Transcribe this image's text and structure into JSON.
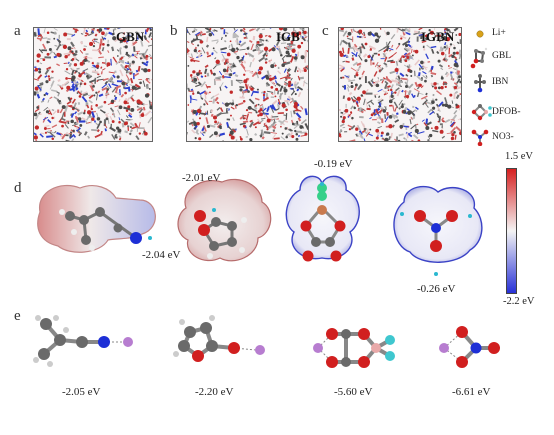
{
  "panels": {
    "a": {
      "label": "a",
      "title": "GBN"
    },
    "b": {
      "label": "b",
      "title": "IGB"
    },
    "c": {
      "label": "c",
      "title": "IGBN"
    },
    "d": {
      "label": "d"
    },
    "e": {
      "label": "e"
    }
  },
  "legend": [
    {
      "label": "Li+",
      "icon": "lithium-ion-icon"
    },
    {
      "label": "GBL",
      "icon": "gbl-molecule-icon"
    },
    {
      "label": "IBN",
      "icon": "ibn-molecule-icon"
    },
    {
      "label": "DFOB-",
      "icon": "dfob-anion-icon"
    },
    {
      "label": "NO3-",
      "icon": "nitrate-anion-icon"
    }
  ],
  "esp_values": {
    "ibn": "-2.04 eV",
    "gbl": "-2.01 eV",
    "dfob": "-0.19 eV",
    "no3": "-0.26 eV"
  },
  "colorbar": {
    "max": "1.5 eV",
    "min": "-2.2 eV",
    "colors": [
      "#d62020",
      "#f4f4f4",
      "#2730d6"
    ]
  },
  "binding_energies": [
    "-2.05 eV",
    "-2.20 eV",
    "-5.60 eV",
    "-6.61 eV"
  ],
  "atom_colors": {
    "carbon": "#6a6a6a",
    "oxygen": "#d11f1f",
    "nitrogen": "#1d2fd6",
    "hydrogen": "#e8e8e8",
    "lithium": "#b77dd0",
    "fluorine": "#3fc7cf",
    "boron": "#e9a9a9"
  }
}
